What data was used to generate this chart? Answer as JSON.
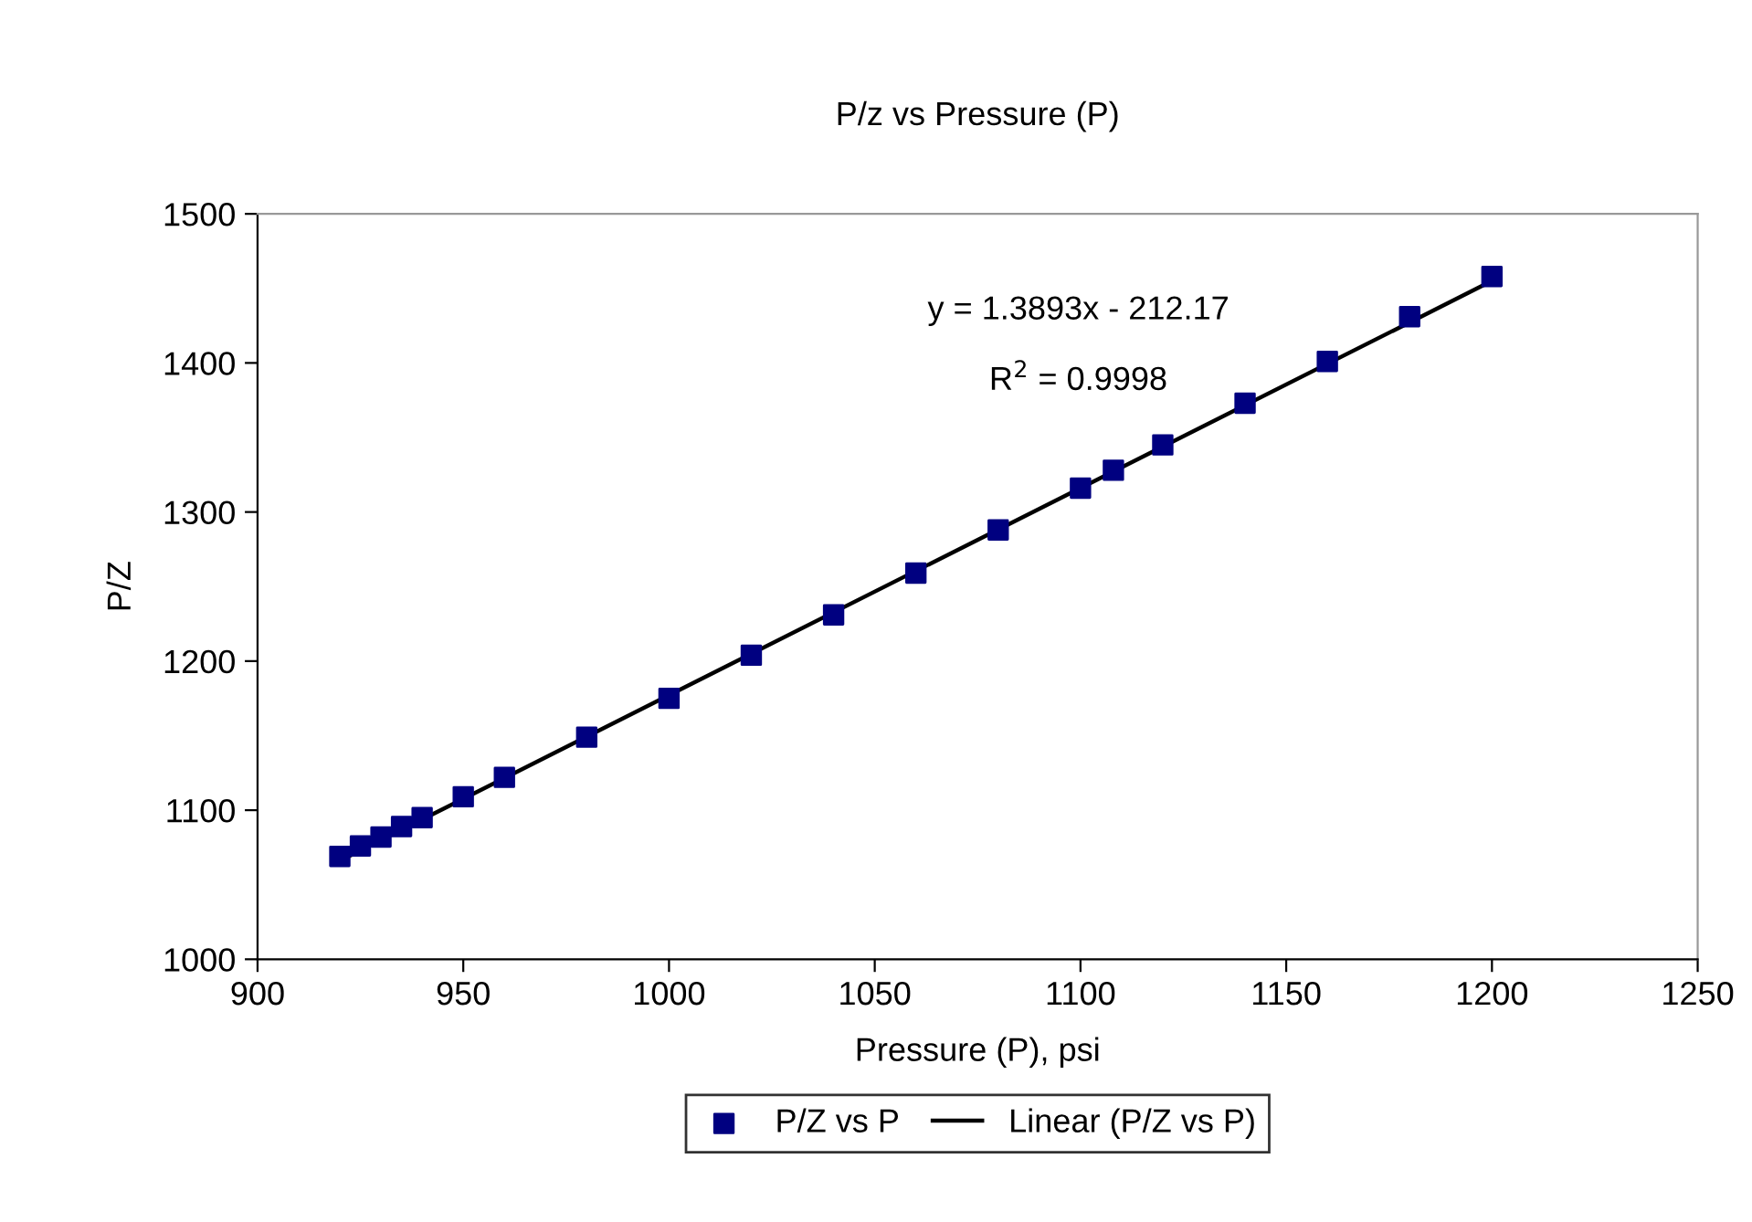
{
  "chart_data": {
    "type": "scatter",
    "title": "P/z vs Pressure (P)",
    "xlabel": "Pressure (P), psi",
    "ylabel": "P/Z",
    "xlim": [
      900,
      1250
    ],
    "xticks": [
      900,
      950,
      1000,
      1050,
      1100,
      1150,
      1200,
      1250
    ],
    "ylim": [
      1000,
      1500
    ],
    "yticks": [
      1000,
      1100,
      1200,
      1300,
      1400,
      1500
    ],
    "grid": false,
    "legend": "bottom",
    "annotations": [
      "y = 1.3893x - 212.17",
      "R$^{2}$ = 0.9998"
    ],
    "series": [
      {
        "name": "P/Z vs P",
        "marker": "square",
        "color": "#000080",
        "x": [
          920,
          925,
          930,
          935,
          940,
          950,
          960,
          980,
          1000,
          1020,
          1040,
          1060,
          1080,
          1100,
          1108,
          1120,
          1140,
          1160,
          1180,
          1200
        ],
        "values": [
          1069,
          1076,
          1082,
          1089,
          1095,
          1109,
          1122,
          1149,
          1175,
          1204,
          1231,
          1259,
          1288,
          1316,
          1328,
          1345,
          1373,
          1401,
          1431,
          1458
        ]
      },
      {
        "name": "Linear (P/Z vs P)",
        "type": "line",
        "marker": "none",
        "line_style": "solid",
        "color": "#000000",
        "x": [
          920,
          1200
        ],
        "values": [
          1066,
          1455
        ]
      }
    ]
  }
}
